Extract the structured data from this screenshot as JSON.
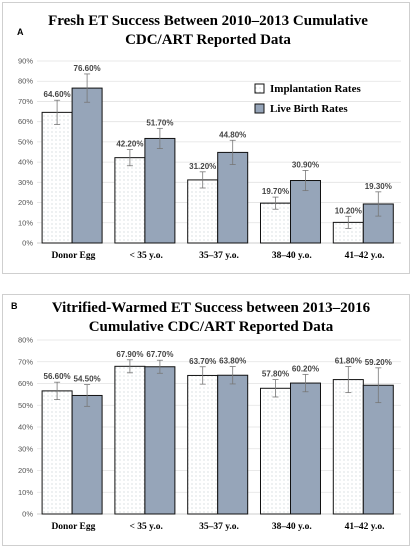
{
  "chart_data": [
    {
      "type": "bar",
      "panel_letter": "A",
      "title": [
        "Fresh ET Success Between 2010–2013 Cumulative",
        "CDC/ART Reported Data"
      ],
      "categories": [
        "Donor Egg",
        "< 35 y.o.",
        "35–37 y.o.",
        "38–40 y.o.",
        "41–42 y.o."
      ],
      "series": [
        {
          "name": "Implantation Rates",
          "values": [
            64.6,
            42.2,
            31.2,
            19.7,
            10.2
          ],
          "labels": [
            "64.60%",
            "42.20%",
            "31.20%",
            "19.70%",
            "10.20%"
          ],
          "errors": [
            6,
            4,
            4,
            3,
            3
          ],
          "fill": "#ffffff",
          "pattern": "dots"
        },
        {
          "name": "Live Birth Rates",
          "values": [
            76.6,
            51.7,
            44.8,
            30.9,
            19.3
          ],
          "labels": [
            "76.60%",
            "51.70%",
            "44.80%",
            "30.90%",
            "19.30%"
          ],
          "errors": [
            7,
            5,
            6,
            5,
            6
          ],
          "fill": "#96a5b9"
        }
      ],
      "y_ticks": [
        "0%",
        "10%",
        "20%",
        "30%",
        "40%",
        "50%",
        "60%",
        "70%",
        "80%",
        "90%"
      ],
      "ylim": [
        0,
        90
      ],
      "legend": "top-right",
      "grid": true
    },
    {
      "type": "bar",
      "panel_letter": "B",
      "title": [
        "Vitrified-Warmed ET Success between 2013–2016",
        "Cumulative CDC/ART Reported Data"
      ],
      "categories": [
        "Donor Egg",
        "< 35 y.o.",
        "35–37 y.o.",
        "38–40 y.o.",
        "41–42 y.o."
      ],
      "series": [
        {
          "values": [
            56.6,
            67.9,
            63.7,
            57.8,
            61.8
          ],
          "labels": [
            "56.60%",
            "67.90%",
            "63.70%",
            "57.80%",
            "61.80%"
          ],
          "errors": [
            4,
            3,
            4,
            4,
            6
          ],
          "fill": "#ffffff",
          "pattern": "dots"
        },
        {
          "values": [
            54.5,
            67.7,
            63.8,
            60.2,
            59.2
          ],
          "labels": [
            "54.50%",
            "67.70%",
            "63.80%",
            "60.20%",
            "59.20%"
          ],
          "errors": [
            5,
            3,
            4,
            4,
            8
          ],
          "fill": "#96a5b9"
        }
      ],
      "y_ticks": [
        "0%",
        "10%",
        "20%",
        "30%",
        "40%",
        "50%",
        "60%",
        "70%",
        "80%"
      ],
      "ylim": [
        0,
        80
      ],
      "legend": "none",
      "grid": true
    }
  ]
}
